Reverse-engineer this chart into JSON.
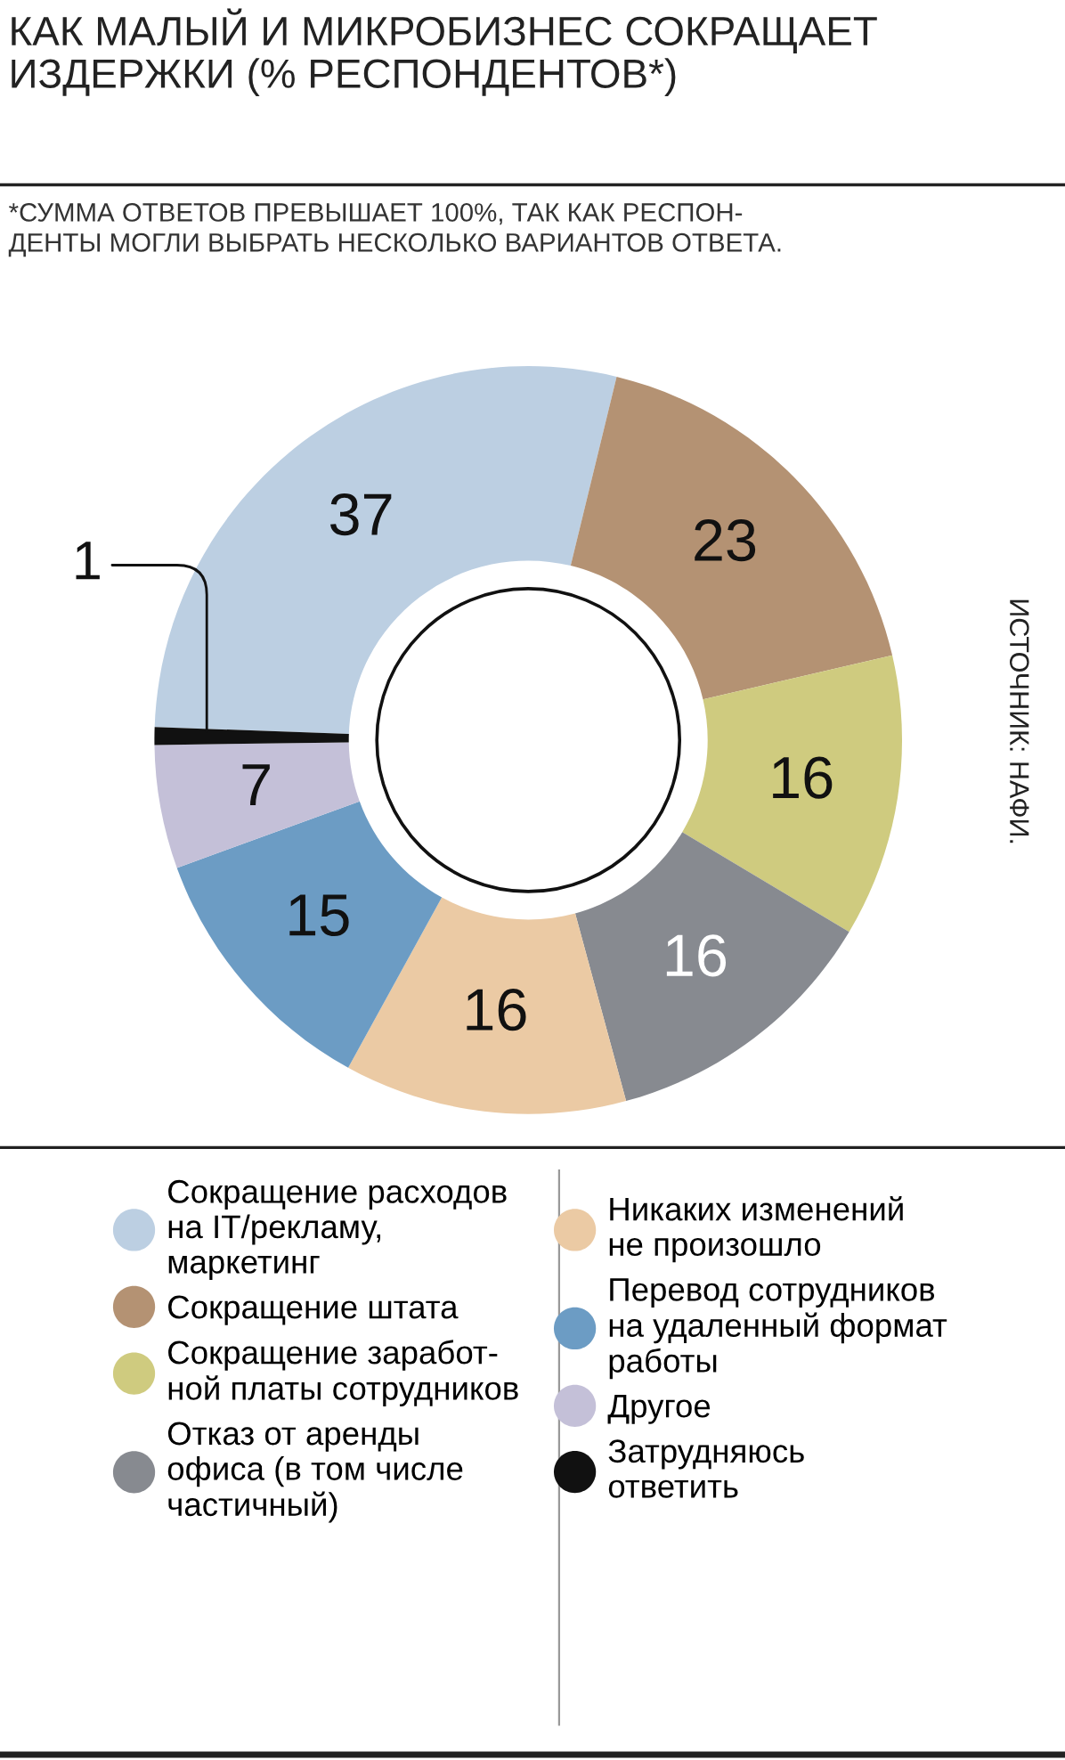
{
  "chart_data": {
    "type": "donut",
    "title": "КАК МАЛЫЙ И МИКРОБИЗНЕС СОКРАЩАЕТ\nИЗДЕРЖКИ (% РЕСПОНДЕНТОВ*)",
    "subtitle": "*СУММА ОТВЕТОВ ПРЕВЫШАЕТ 100%, ТАК КАК РЕСПОН-\nДЕНТЫ МОГЛИ ВЫБРАТЬ НЕСКОЛЬКО ВАРИАНТОВ ОТВЕТА.",
    "annotations": [
      "ИСТОЧНИК: НАФИ."
    ],
    "categories": [
      "Сокращение расходов\nна IT/рекламу,\nмаркетинг",
      "Сокращение штата",
      "Сокращение заработ-\nной платы сотрудников",
      "Отказ от аренды\nофиса (в том числе\nчастичный)",
      "Никаких изменений\nне произошло",
      "Перевод сотрудников\nна удаленный формат\nработы",
      "Другое",
      "Затрудняюсь\nответить"
    ],
    "values": [
      37,
      23,
      16,
      16,
      16,
      15,
      7,
      1
    ],
    "colors": [
      "#bccfe2",
      "#b49273",
      "#cfcb7f",
      "#878a90",
      "#ebcaa4",
      "#6c9cc4",
      "#c4c0d8",
      "#111111"
    ],
    "data_labels": true,
    "legend": "bottom"
  }
}
